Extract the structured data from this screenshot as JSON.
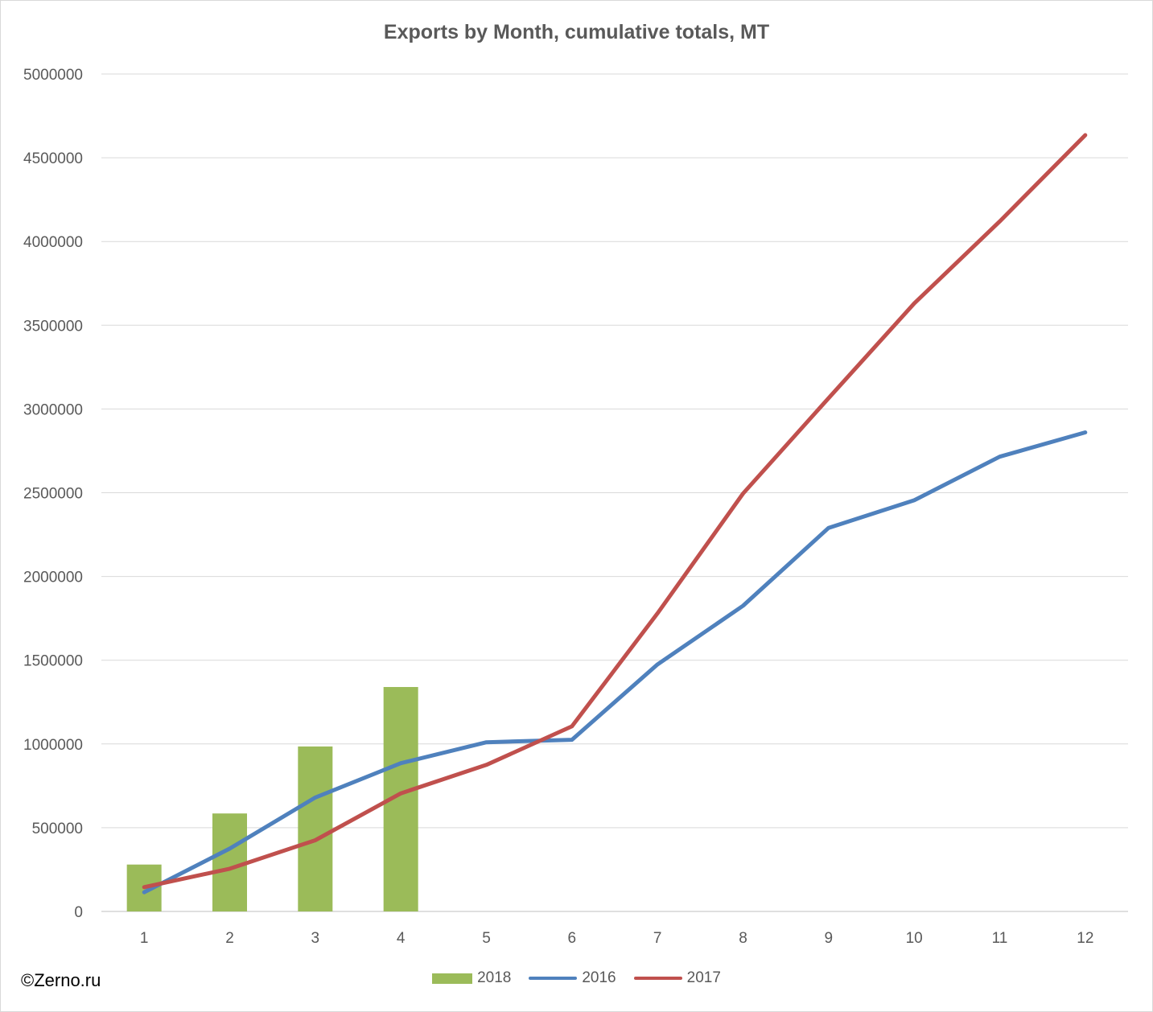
{
  "chart_data": {
    "type": "bar+line",
    "title": "Exports by Month, cumulative totals, MT",
    "categories": [
      "1",
      "2",
      "3",
      "4",
      "5",
      "6",
      "7",
      "8",
      "9",
      "10",
      "11",
      "12"
    ],
    "ylim": [
      0,
      5000000
    ],
    "yticks": [
      "0",
      "500000",
      "1000000",
      "1500000",
      "2000000",
      "2500000",
      "3000000",
      "3500000",
      "4000000",
      "4500000",
      "5000000"
    ],
    "grid": true,
    "legend_position": "bottom",
    "series": [
      {
        "name": "2018",
        "kind": "bar",
        "color": "#9bbb59",
        "values": [
          280000,
          585000,
          985000,
          1340000,
          null,
          null,
          null,
          null,
          null,
          null,
          null,
          null
        ]
      },
      {
        "name": "2016",
        "kind": "line",
        "color": "#4f81bd",
        "values": [
          115000,
          375000,
          680000,
          885000,
          1010000,
          1025000,
          1475000,
          1825000,
          2290000,
          2455000,
          2715000,
          2860000
        ]
      },
      {
        "name": "2017",
        "kind": "line",
        "color": "#c0504d",
        "values": [
          145000,
          255000,
          425000,
          705000,
          875000,
          1105000,
          1780000,
          2495000,
          3065000,
          3630000,
          4120000,
          4635000
        ]
      }
    ]
  },
  "watermark": "©Zerno.ru"
}
